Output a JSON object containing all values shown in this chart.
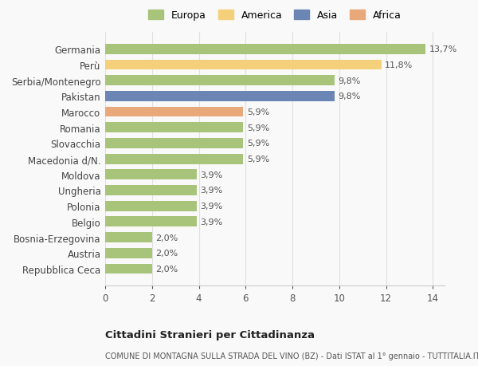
{
  "categories": [
    "Germania",
    "Perù",
    "Serbia/Montenegro",
    "Pakistan",
    "Marocco",
    "Romania",
    "Slovacchia",
    "Macedonia d/N.",
    "Moldova",
    "Ungheria",
    "Polonia",
    "Belgio",
    "Bosnia-Erzegovina",
    "Austria",
    "Repubblica Ceca"
  ],
  "values": [
    13.7,
    11.8,
    9.8,
    9.8,
    5.9,
    5.9,
    5.9,
    5.9,
    3.9,
    3.9,
    3.9,
    3.9,
    2.0,
    2.0,
    2.0
  ],
  "labels": [
    "13,7%",
    "11,8%",
    "9,8%",
    "9,8%",
    "5,9%",
    "5,9%",
    "5,9%",
    "5,9%",
    "3,9%",
    "3,9%",
    "3,9%",
    "3,9%",
    "2,0%",
    "2,0%",
    "2,0%"
  ],
  "colors": [
    "#a8c47a",
    "#f5d07a",
    "#a8c47a",
    "#6b85b5",
    "#e8a87a",
    "#a8c47a",
    "#a8c47a",
    "#a8c47a",
    "#a8c47a",
    "#a8c47a",
    "#a8c47a",
    "#a8c47a",
    "#a8c47a",
    "#a8c47a",
    "#a8c47a"
  ],
  "legend_labels": [
    "Europa",
    "America",
    "Asia",
    "Africa"
  ],
  "legend_colors": [
    "#a8c47a",
    "#f5d07a",
    "#6b85b5",
    "#e8a87a"
  ],
  "title": "Cittadini Stranieri per Cittadinanza",
  "subtitle": "COMUNE DI MONTAGNA SULLA STRADA DEL VINO (BZ) - Dati ISTAT al 1° gennaio - TUTTITALIA.IT",
  "xlim": [
    0,
    14.5
  ],
  "xticks": [
    0,
    2,
    4,
    6,
    8,
    10,
    12,
    14
  ],
  "background_color": "#f9f9f9",
  "grid_color": "#e0e0e0",
  "bar_height": 0.65
}
